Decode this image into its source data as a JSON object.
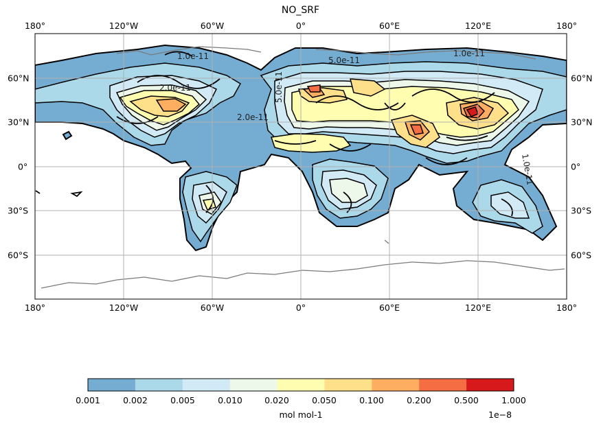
{
  "title": "NO_SRF",
  "lon_ticks": [
    "180°",
    "120°W",
    "60°W",
    "0°",
    "60°E",
    "120°E",
    "180°"
  ],
  "lat_ticks": [
    "60°N",
    "30°N",
    "0°",
    "30°S",
    "60°S"
  ],
  "colorbar": {
    "boundaries": [
      "0.001",
      "0.002",
      "0.005",
      "0.010",
      "0.020",
      "0.050",
      "0.100",
      "0.200",
      "0.500",
      "1.000"
    ],
    "colors": [
      "#74add1",
      "#abd9e9",
      "#d1eaf5",
      "#eef8ea",
      "#fffdb0",
      "#fee08b",
      "#fdae61",
      "#f46d43",
      "#d7191c"
    ],
    "label": "mol mol-1",
    "scale": "1e−8"
  },
  "contour_labels": [
    "2.0e-11",
    "1.0e-11",
    "5.0e-11",
    "1.0e-11",
    "2.0e-11",
    "5.0e-11",
    "1.0e-11"
  ]
}
